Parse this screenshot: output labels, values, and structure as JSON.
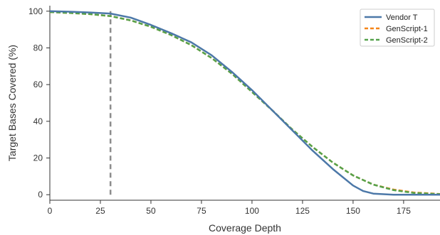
{
  "chart_data": {
    "type": "line",
    "xlabel": "Coverage Depth",
    "ylabel": "Target Bases Covered (%)",
    "xlim": [
      0,
      193
    ],
    "ylim": [
      -3,
      103
    ],
    "xticks": [
      0,
      25,
      50,
      75,
      100,
      125,
      150,
      175
    ],
    "yticks": [
      0,
      20,
      40,
      60,
      80,
      100
    ],
    "grid": false,
    "legend_position": "top-right",
    "vertical_reference_line": {
      "x": 30,
      "y_range": [
        0,
        100
      ],
      "style": "dashed",
      "color": "#8c8c8c"
    },
    "series": [
      {
        "name": "Vendor T",
        "color": "#4c78a8",
        "style": "solid",
        "x": [
          0,
          10,
          20,
          30,
          40,
          50,
          60,
          70,
          80,
          90,
          100,
          110,
          120,
          130,
          140,
          150,
          155,
          160,
          170,
          180,
          193
        ],
        "y": [
          100,
          99.7,
          99.3,
          98.7,
          96.5,
          92.5,
          88,
          83,
          76,
          67,
          57,
          46,
          35,
          24,
          14,
          5,
          2,
          0.6,
          0,
          0,
          0
        ]
      },
      {
        "name": "GenScript-1",
        "color": "#f58518",
        "style": "dashed",
        "x": [
          0,
          10,
          20,
          30,
          40,
          50,
          60,
          70,
          80,
          90,
          100,
          110,
          120,
          130,
          140,
          150,
          160,
          170,
          180,
          193
        ],
        "y": [
          99.5,
          99,
          98.4,
          97.3,
          95,
          91.5,
          87,
          81.5,
          74.5,
          66,
          56,
          46,
          35.5,
          26,
          17.5,
          10.5,
          5.5,
          2.8,
          1.2,
          0.4
        ]
      },
      {
        "name": "GenScript-2",
        "color": "#54a24b",
        "style": "dashed",
        "x": [
          0,
          10,
          20,
          30,
          40,
          50,
          60,
          70,
          80,
          90,
          100,
          110,
          120,
          130,
          140,
          150,
          160,
          170,
          180,
          193
        ],
        "y": [
          99.5,
          99,
          98.4,
          97.3,
          95,
          91.5,
          87,
          81.5,
          74.5,
          66,
          56,
          46,
          35.5,
          26,
          17.5,
          10.5,
          5.5,
          2.5,
          1,
          0.3
        ]
      }
    ]
  }
}
